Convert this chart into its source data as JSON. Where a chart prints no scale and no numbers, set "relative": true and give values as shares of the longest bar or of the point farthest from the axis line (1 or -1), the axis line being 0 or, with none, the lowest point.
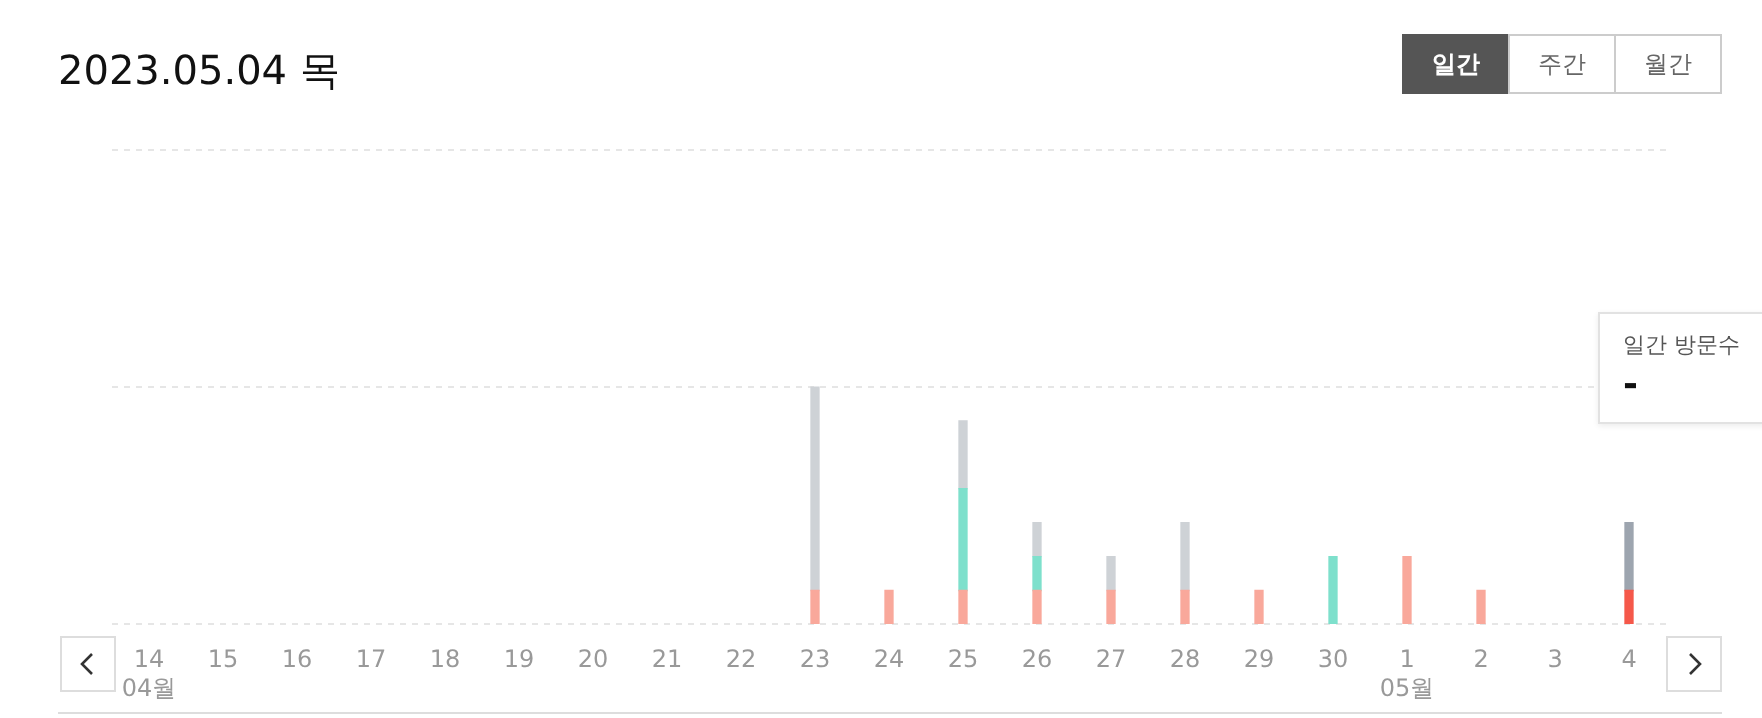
{
  "chart_data": {
    "type": "bar",
    "title": "2023.05.04 목",
    "relative": true,
    "stacked": true,
    "grid": "y",
    "legend": false,
    "categories": [
      "14\n04월",
      "15",
      "16",
      "17",
      "18",
      "19",
      "20",
      "21",
      "22",
      "23",
      "24",
      "25",
      "26",
      "27",
      "28",
      "29",
      "30",
      "1\n05월",
      "2",
      "3",
      "4"
    ],
    "series": [
      {
        "colors": [
          "#f9a89b",
          "#f9a89b",
          "#f9a89b",
          "#f9a89b",
          "#f9a89b",
          "#f9a89b",
          "#f9a89b",
          "#f9a89b",
          "#f9a89b",
          "#f9a89b",
          "#f9a89b",
          "#f9a89b",
          "#f9a89b",
          "#f9a89b",
          "#f9a89b",
          "#f9a89b",
          "#f9a89b",
          "#f9a89b",
          "#f9a89b",
          "#f9a89b",
          "#f5584a"
        ],
        "values": [
          null,
          null,
          null,
          null,
          null,
          null,
          null,
          null,
          null,
          0.143,
          0.143,
          0.143,
          0.143,
          0.143,
          0.143,
          0.143,
          null,
          0.286,
          0.143,
          null,
          0.143
        ]
      },
      {
        "color": "#7ee0cc",
        "values": [
          null,
          null,
          null,
          null,
          null,
          null,
          null,
          null,
          null,
          null,
          null,
          0.429,
          0.143,
          null,
          null,
          null,
          0.286,
          null,
          null,
          null,
          null
        ]
      },
      {
        "colors": [
          "#ced2d6",
          "#ced2d6",
          "#ced2d6",
          "#ced2d6",
          "#ced2d6",
          "#ced2d6",
          "#ced2d6",
          "#ced2d6",
          "#ced2d6",
          "#ced2d6",
          "#ced2d6",
          "#ced2d6",
          "#ced2d6",
          "#ced2d6",
          "#ced2d6",
          "#ced2d6",
          "#ced2d6",
          "#ced2d6",
          "#ced2d6",
          "#ced2d6",
          "#9da5af"
        ],
        "values": [
          null,
          null,
          null,
          null,
          null,
          null,
          null,
          null,
          null,
          0.857,
          null,
          0.286,
          0.143,
          0.143,
          0.286,
          null,
          null,
          null,
          null,
          null,
          0.286
        ]
      }
    ],
    "annotations": [
      "일간",
      "주간",
      "월간",
      "일간 방문수",
      "-"
    ]
  }
}
